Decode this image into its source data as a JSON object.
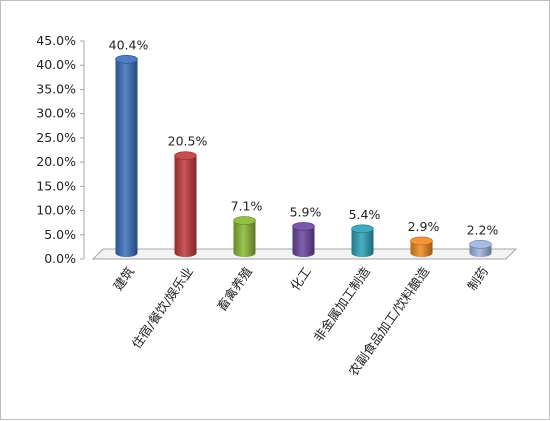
{
  "chart_data": {
    "type": "bar",
    "title": "",
    "xlabel": "",
    "ylabel": "",
    "ylim": [
      0,
      45
    ],
    "yticks": [
      0,
      5,
      10,
      15,
      20,
      25,
      30,
      35,
      40,
      45
    ],
    "ytick_labels": [
      "0.0%",
      "5.0%",
      "10.0%",
      "15.0%",
      "20.0%",
      "25.0%",
      "30.0%",
      "35.0%",
      "40.0%",
      "45.0%"
    ],
    "categories": [
      "建筑",
      "住宿/餐饮/娱乐业",
      "畜禽养殖",
      "化工",
      "非金属加工制造",
      "农副食品加工/饮料酿造",
      "制药"
    ],
    "values": [
      40.4,
      20.5,
      7.1,
      5.9,
      5.4,
      2.9,
      2.2
    ],
    "data_labels": [
      "40.4%",
      "20.5%",
      "7.1%",
      "5.9%",
      "5.4%",
      "2.9%",
      "2.2%"
    ],
    "colors": [
      "#3a6fbf",
      "#c0393b",
      "#8ab832",
      "#6a45a0",
      "#2aa2b8",
      "#f0891e",
      "#9db3e0"
    ],
    "grid": false,
    "legend": "none",
    "style": "3d-cylinder"
  }
}
